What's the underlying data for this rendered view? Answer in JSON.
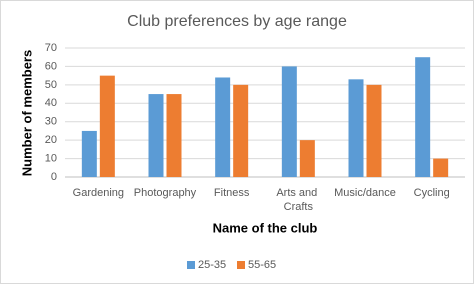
{
  "chart_data": {
    "type": "bar",
    "title": "Club preferences by age range",
    "x_label": "Name of the club",
    "y_label": "Number of members",
    "categories": [
      "Gardening",
      "Photography",
      "Fitness",
      "Arts and Crafts",
      "Music/dance",
      "Cycling"
    ],
    "series": [
      {
        "name": "25-35",
        "color": "#5b9bd5",
        "values": [
          25,
          45,
          54,
          60,
          53,
          65
        ]
      },
      {
        "name": "55-65",
        "color": "#ed7d31",
        "values": [
          55,
          45,
          50,
          20,
          50,
          10
        ]
      }
    ],
    "ylim": [
      0,
      70
    ],
    "yticks": [
      0,
      10,
      20,
      30,
      40,
      50,
      60,
      70
    ],
    "grid": true,
    "legend": "bottom"
  }
}
